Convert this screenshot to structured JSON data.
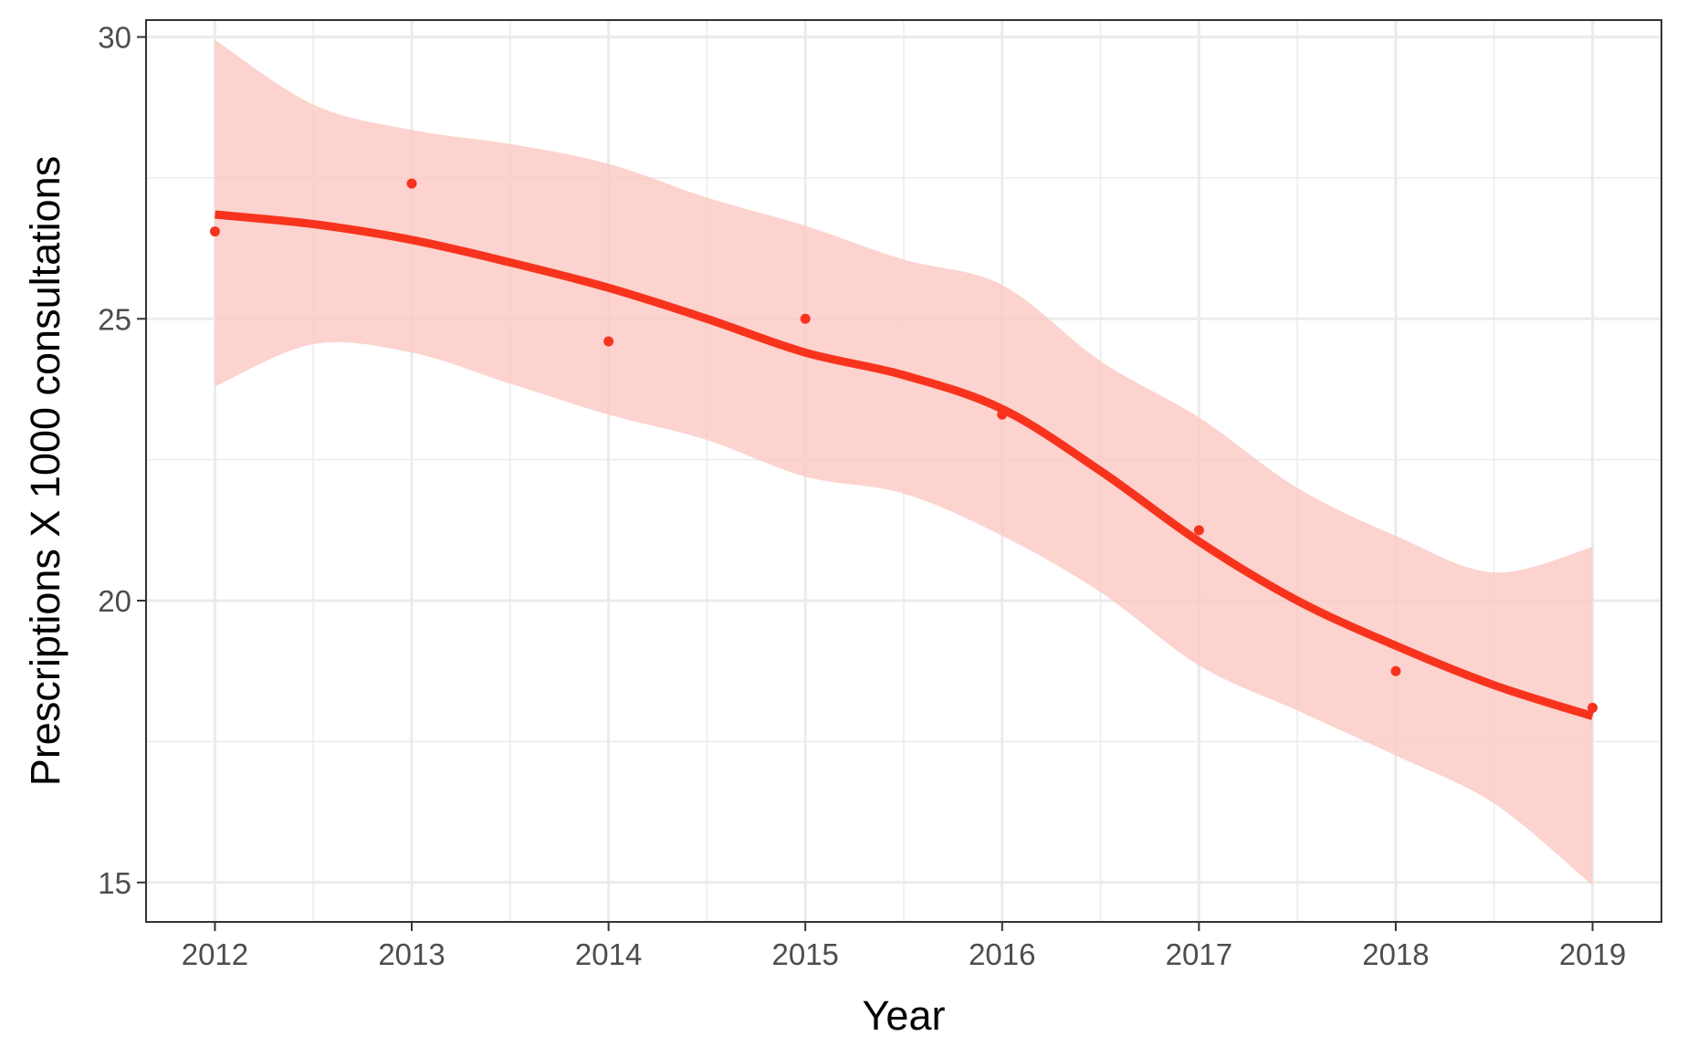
{
  "chart_data": {
    "type": "line",
    "xlabel": "Year",
    "ylabel": "Prescriptions X 1000 consultations",
    "xlim": [
      2011.65,
      2019.35
    ],
    "ylim": [
      14.3,
      30.3
    ],
    "x_ticks": [
      2012,
      2013,
      2014,
      2015,
      2016,
      2017,
      2018,
      2019
    ],
    "y_ticks": [
      15,
      20,
      25,
      30
    ],
    "grid": true,
    "legend": "none",
    "colors": {
      "series": "#f8331d",
      "band": "#fbc8c2",
      "grid": "#ebebeb",
      "frame": "#333333"
    },
    "series": [
      {
        "kind": "points",
        "x": [
          2012,
          2013,
          2014,
          2015,
          2016,
          2017,
          2018,
          2019
        ],
        "y": [
          26.55,
          27.4,
          24.6,
          25.0,
          23.3,
          21.25,
          18.75,
          18.1
        ]
      },
      {
        "kind": "smooth-fit",
        "x": [
          2012,
          2012.5,
          2013,
          2013.5,
          2014,
          2014.5,
          2015,
          2015.5,
          2016,
          2016.5,
          2017,
          2017.5,
          2018,
          2018.5,
          2019
        ],
        "y": [
          26.85,
          26.68,
          26.4,
          26.0,
          25.55,
          25.0,
          24.4,
          24.0,
          23.4,
          22.3,
          21.05,
          20.0,
          19.2,
          18.5,
          17.95
        ],
        "ci_lower": [
          23.8,
          24.55,
          24.4,
          23.85,
          23.3,
          22.85,
          22.2,
          21.9,
          21.15,
          20.15,
          18.85,
          18.05,
          17.25,
          16.4,
          14.95
        ],
        "ci_upper": [
          29.95,
          28.8,
          28.35,
          28.1,
          27.75,
          27.15,
          26.65,
          26.05,
          25.6,
          24.25,
          23.25,
          22.0,
          21.15,
          20.5,
          20.95
        ]
      }
    ]
  }
}
